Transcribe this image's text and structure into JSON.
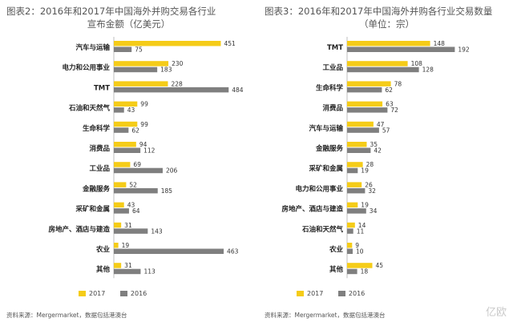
{
  "chart_data": [
    {
      "type": "bar",
      "title_line1": "图表2：2016年和2017年中国海外并购交易各行业",
      "title_line2": "宣布金额（亿美元）",
      "categories": [
        "汽车与运输",
        "电力和公用事业",
        "TMT",
        "石油和天然气",
        "生命科学",
        "消费品",
        "工业品",
        "金融服务",
        "采矿和金属",
        "房地产、酒店与建造",
        "农业",
        "其他"
      ],
      "series": [
        {
          "name": "2017",
          "values": [
            451,
            230,
            228,
            99,
            99,
            94,
            69,
            52,
            43,
            31,
            19,
            31
          ]
        },
        {
          "name": "2016",
          "values": [
            75,
            183,
            484,
            43,
            62,
            112,
            206,
            185,
            64,
            143,
            463,
            113
          ]
        }
      ],
      "xlim": [
        0,
        500
      ],
      "legend": "bottom",
      "source": "资料来源：Mergermarket，数据包括港澳台"
    },
    {
      "type": "bar",
      "title_line1": "图表3：2016年和2017年中国海外并购各行业交易数量",
      "title_line2": "（单位：宗）",
      "categories": [
        "TMT",
        "工业品",
        "生命科学",
        "消费品",
        "汽车与运输",
        "金融服务",
        "采矿和金属",
        "电力和公用事业",
        "房地产、酒店与建造",
        "石油和天然气",
        "农业",
        "其他"
      ],
      "series": [
        {
          "name": "2017",
          "values": [
            148,
            108,
            78,
            63,
            47,
            35,
            28,
            26,
            19,
            14,
            9,
            45
          ]
        },
        {
          "name": "2016",
          "values": [
            192,
            128,
            62,
            72,
            57,
            42,
            19,
            32,
            34,
            11,
            10,
            18
          ]
        }
      ],
      "xlim": [
        0,
        200
      ],
      "legend": "bottom",
      "source": "资料来源：Mergermarket，数据包括港澳台"
    }
  ],
  "colors": {
    "y2017": "#f5cc18",
    "y2016": "#7f7f7f"
  },
  "watermark": "亿欧"
}
